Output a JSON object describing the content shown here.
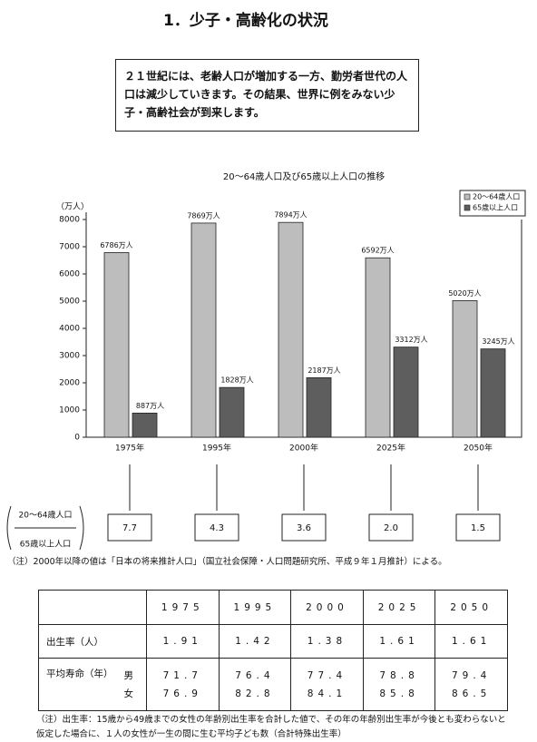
{
  "title": "1．少子・高齢化の状況",
  "summary": "２１世紀には、老齢人口が増加する一方、勤労者世代の人口は減少していきます。その結果、世界に例をみない少子・高齢社会が到来します。",
  "chart_data": {
    "type": "bar",
    "title": "20～64歳人口及び65歳以上人口の推移",
    "y_label": "（万人）",
    "categories": [
      "1975年",
      "1995年",
      "2000年",
      "2025年",
      "2050年"
    ],
    "series": [
      {
        "name": "20～64歳人口",
        "color": "#bdbdbd",
        "values": [
          6786,
          7869,
          7894,
          6592,
          5020
        ],
        "value_labels": [
          "6786万人",
          "7869万人",
          "7894万人",
          "6592万人",
          "5020万人"
        ]
      },
      {
        "name": "65歳以上人口",
        "color": "#5e5e5e",
        "values": [
          887,
          1828,
          2187,
          3312,
          3245
        ],
        "value_labels": [
          "887万人",
          "1828万人",
          "2187万人",
          "3312万人",
          "3245万人"
        ]
      }
    ],
    "ylim": [
      0,
      8000
    ],
    "yticks": [
      0,
      1000,
      2000,
      3000,
      4000,
      5000,
      6000,
      7000,
      8000
    ],
    "legend": "upper right"
  },
  "ratio": {
    "numerator": "20～64歳人口",
    "denominator": "65歳以上人口",
    "values": [
      "7.7",
      "4.3",
      "3.6",
      "2.0",
      "1.5"
    ]
  },
  "source_note": "（注）2000年以降の値は「日本の将来推計人口」（国立社会保障・人口問題研究所、平成９年１月推計）による。",
  "table": {
    "header": [
      "1975",
      "1995",
      "2000",
      "2025",
      "2050"
    ],
    "birth_rate": {
      "label": "出生率（人）",
      "values": [
        "1.91",
        "1.42",
        "1.38",
        "1.61",
        "1.61"
      ]
    },
    "life": {
      "label": "平均寿命（年）",
      "male": {
        "label": "男",
        "values": [
          "71.7",
          "76.4",
          "77.4",
          "78.8",
          "79.4"
        ]
      },
      "female": {
        "label": "女",
        "values": [
          "76.9",
          "82.8",
          "84.1",
          "85.8",
          "86.5"
        ]
      }
    }
  },
  "footnote": "（注）出生率：15歳から49歳までの女性の年齢別出生率を合計した値で、その年の年齢別出生率が今後とも変わらないと仮定した場合に、１人の女性が一生の間に生む平均子ども数（合計特殊出生率）"
}
